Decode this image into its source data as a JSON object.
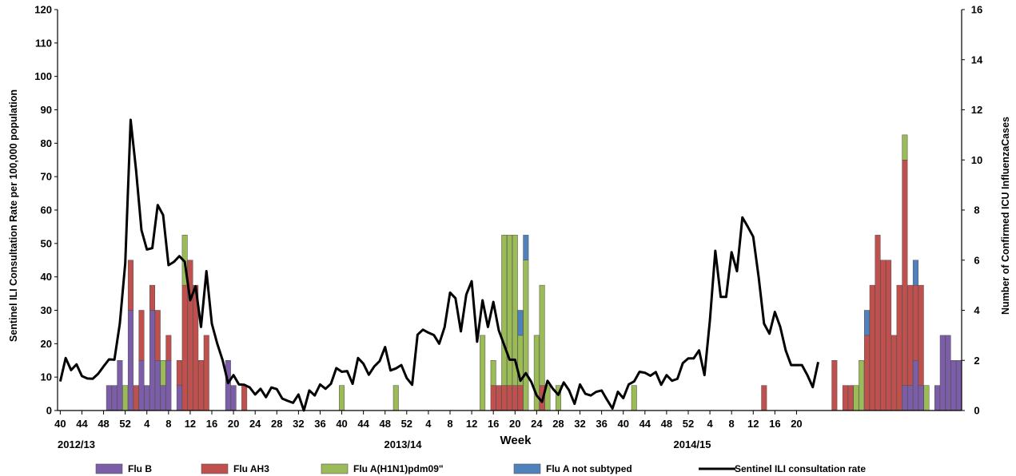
{
  "chart_data": {
    "type": "bar",
    "title": "",
    "xlabel": "Week",
    "ylabel": "Sentinel ILI Consultation Rate per 100,000  population",
    "y2label": "Number of Confirmed ICU InfluenzaCases",
    "ylim": [
      0,
      120
    ],
    "y2lim": [
      0,
      16
    ],
    "y_ticks": [
      0,
      10,
      20,
      30,
      40,
      50,
      60,
      70,
      80,
      90,
      100,
      110,
      120
    ],
    "y2_ticks": [
      0,
      2,
      4,
      6,
      8,
      10,
      12,
      14,
      16
    ],
    "grid": false,
    "legend_position": "bottom",
    "x_tick_labels": [
      "40",
      "44",
      "48",
      "52",
      "4",
      "8",
      "12",
      "16",
      "20",
      "24",
      "28",
      "32",
      "36",
      "40",
      "44",
      "48",
      "52",
      "4",
      "8",
      "12",
      "16",
      "20",
      "24",
      "28",
      "32",
      "36",
      "40",
      "44",
      "48",
      "52",
      "4",
      "8",
      "12",
      "16",
      "20"
    ],
    "seasons": [
      "2012/13",
      "2013/14",
      "2014/15"
    ],
    "series": [
      {
        "name": "Flu B",
        "color": "#7b5ea7",
        "axis": "right",
        "values": [
          0,
          0,
          0,
          0,
          0,
          0,
          0,
          0,
          0,
          1,
          1,
          2,
          0,
          4,
          0,
          2,
          1,
          4,
          2,
          1,
          2,
          0,
          1,
          0,
          0,
          0,
          0,
          0,
          0,
          0,
          0,
          2,
          1,
          0,
          0,
          0,
          0,
          0,
          0,
          0,
          0,
          0,
          0,
          0,
          0,
          0,
          0,
          0,
          0,
          0,
          0,
          0,
          0,
          0,
          0,
          0,
          0,
          0,
          0,
          0,
          0,
          0,
          0,
          0,
          0,
          0,
          0,
          0,
          0,
          0,
          0,
          0,
          0,
          0,
          0,
          0,
          0,
          0,
          0,
          0,
          0,
          0,
          0,
          0,
          0,
          0,
          0,
          0,
          0,
          0,
          0,
          0,
          0,
          0,
          0,
          0,
          0,
          0,
          0,
          0,
          0,
          0,
          0,
          0,
          0,
          0,
          0,
          0,
          0,
          0,
          0,
          0,
          0,
          0,
          0,
          0,
          0,
          0,
          0,
          0,
          0,
          0,
          0,
          0,
          0,
          0,
          0,
          0,
          0,
          0,
          0,
          0,
          0,
          0,
          0,
          0,
          0,
          0,
          0,
          0,
          0,
          0,
          0,
          0,
          0,
          0,
          0,
          0,
          0,
          0,
          0,
          0,
          0,
          0,
          0,
          0,
          1,
          1,
          2,
          1,
          0,
          0,
          1,
          3,
          3,
          2,
          2
        ]
      },
      {
        "name": "Flu AH3",
        "color": "#c0504d",
        "axis": "right",
        "values": [
          0,
          0,
          0,
          0,
          0,
          0,
          0,
          0,
          0,
          0,
          0,
          0,
          0,
          2,
          1,
          2,
          0,
          1,
          2,
          0,
          1,
          0,
          1,
          5,
          6,
          5,
          2,
          3,
          0,
          0,
          0,
          0,
          0,
          0,
          1,
          0,
          0,
          0,
          0,
          0,
          0,
          0,
          0,
          0,
          0,
          0,
          0,
          0,
          0,
          0,
          0,
          0,
          0,
          0,
          0,
          0,
          0,
          0,
          0,
          0,
          0,
          0,
          0,
          0,
          0,
          0,
          0,
          0,
          0,
          0,
          0,
          0,
          0,
          0,
          0,
          0,
          0,
          0,
          0,
          0,
          1,
          1,
          1,
          1,
          1,
          1,
          0,
          0,
          0,
          1,
          0,
          0,
          0,
          0,
          0,
          0,
          0,
          0,
          0,
          0,
          0,
          0,
          0,
          0,
          0,
          0,
          0,
          0,
          0,
          0,
          0,
          0,
          0,
          0,
          0,
          0,
          0,
          0,
          0,
          0,
          0,
          0,
          0,
          0,
          0,
          0,
          0,
          0,
          0,
          0,
          1,
          0,
          0,
          0,
          0,
          0,
          0,
          0,
          0,
          0,
          0,
          0,
          0,
          2,
          0,
          1,
          1,
          0,
          0,
          3,
          5,
          7,
          6,
          6,
          3,
          5,
          9,
          4,
          3,
          4,
          0,
          0,
          0,
          0,
          0,
          0,
          0
        ]
      },
      {
        "name": "Flu A(H1N1)pdm09\"",
        "color": "#9bbb59",
        "axis": "right",
        "values": [
          0,
          0,
          0,
          0,
          0,
          0,
          0,
          0,
          0,
          0,
          0,
          0,
          1,
          0,
          0,
          0,
          0,
          0,
          0,
          1,
          0,
          0,
          0,
          2,
          0,
          0,
          0,
          0,
          0,
          0,
          0,
          0,
          0,
          0,
          0,
          0,
          0,
          0,
          0,
          0,
          0,
          0,
          0,
          0,
          0,
          0,
          0,
          0,
          0,
          0,
          0,
          0,
          1,
          0,
          0,
          0,
          0,
          0,
          0,
          0,
          0,
          0,
          1,
          0,
          0,
          0,
          0,
          0,
          0,
          0,
          0,
          0,
          0,
          0,
          0,
          0,
          0,
          0,
          3,
          0,
          1,
          0,
          6,
          6,
          6,
          2,
          6,
          0,
          3,
          4,
          1,
          0,
          1,
          0,
          0,
          0,
          0,
          0,
          0,
          0,
          0,
          0,
          0,
          0,
          0,
          0,
          1,
          0,
          0,
          0,
          0,
          0,
          0,
          0,
          0,
          0,
          0,
          0,
          0,
          0,
          0,
          0,
          0,
          0,
          0,
          0,
          0,
          0,
          0,
          0,
          0,
          0,
          0,
          0,
          0,
          0,
          0,
          0,
          0,
          0,
          0,
          0,
          0,
          0,
          0,
          0,
          0,
          1,
          2,
          0,
          0,
          0,
          0,
          0,
          0,
          0,
          1,
          0,
          0,
          0,
          1,
          0,
          0,
          0,
          0,
          0,
          0
        ]
      },
      {
        "name": "Flu A not subtyped",
        "color": "#4f81bd",
        "axis": "right",
        "values": [
          0,
          0,
          0,
          0,
          0,
          0,
          0,
          0,
          0,
          0,
          0,
          0,
          0,
          0,
          0,
          0,
          0,
          0,
          0,
          0,
          0,
          0,
          0,
          0,
          0,
          0,
          0,
          0,
          0,
          0,
          0,
          0,
          0,
          0,
          0,
          0,
          0,
          0,
          0,
          0,
          0,
          0,
          0,
          0,
          0,
          0,
          0,
          0,
          0,
          0,
          0,
          0,
          0,
          0,
          0,
          0,
          0,
          0,
          0,
          0,
          0,
          0,
          0,
          0,
          0,
          0,
          0,
          0,
          0,
          0,
          0,
          0,
          0,
          0,
          0,
          0,
          0,
          0,
          0,
          0,
          0,
          0,
          0,
          0,
          0,
          1,
          1,
          0,
          0,
          0,
          0,
          0,
          0,
          0,
          0,
          0,
          0,
          0,
          0,
          0,
          0,
          0,
          0,
          0,
          0,
          0,
          0,
          0,
          0,
          0,
          0,
          0,
          0,
          0,
          0,
          0,
          0,
          0,
          0,
          0,
          0,
          0,
          0,
          0,
          0,
          0,
          0,
          0,
          0,
          0,
          0,
          0,
          0,
          0,
          0,
          0,
          0,
          0,
          0,
          0,
          0,
          0,
          0,
          0,
          0,
          0,
          0,
          0,
          0,
          1,
          0,
          0,
          0,
          0,
          0,
          0,
          0,
          0,
          1,
          0,
          0,
          0,
          0,
          0,
          0,
          0,
          0
        ]
      },
      {
        "name": "Sentinel ILI consultation rate",
        "color": "#000000",
        "axis": "left",
        "kind": "line",
        "values": [
          8.7,
          15.7,
          12.1,
          13.8,
          10.3,
          9.6,
          9.5,
          11.0,
          13.2,
          15.3,
          15.2,
          26.0,
          44.0,
          87.0,
          72.0,
          54.0,
          48.2,
          48.6,
          61.5,
          58.5,
          43.5,
          44.5,
          46.2,
          44.5,
          33.0,
          37.2,
          25.0,
          41.7,
          26.0,
          20.0,
          15.0,
          8.2,
          10.6,
          7.8,
          7.7,
          6.9,
          4.8,
          6.5,
          4.0,
          6.9,
          6.4,
          3.6,
          2.9,
          2.3,
          4.8,
          0.0,
          6.0,
          4.5,
          7.8,
          6.5,
          8.0,
          12.7,
          11.6,
          11.8,
          8.0,
          15.7,
          14.0,
          10.7,
          13.2,
          14.8,
          19.0,
          12.0,
          12.6,
          13.6,
          9.7,
          7.7,
          22.7,
          24.2,
          23.3,
          22.6,
          20.0,
          25.0,
          35.3,
          33.6,
          23.7,
          34.7,
          38.7,
          20.6,
          33.0,
          25.0,
          32.5,
          24.0,
          19.6,
          15.2,
          15.2,
          8.9,
          11.2,
          8.6,
          4.5,
          2.6,
          8.9,
          6.5,
          4.7,
          8.4,
          6.0,
          2.0,
          7.8,
          5.0,
          4.5,
          5.6,
          6.0,
          3.2,
          0.6,
          5.6,
          3.7,
          7.8,
          8.7,
          11.6,
          11.3,
          10.4,
          11.5,
          7.7,
          10.6,
          8.9,
          9.5,
          14.2,
          15.6,
          15.6,
          18.0,
          10.6,
          27.0,
          47.8,
          34.0,
          34.0,
          47.4,
          41.7,
          57.8,
          55.0,
          52.0,
          40.0,
          26.0,
          23.0,
          29.5,
          25.0,
          18.0,
          13.6,
          13.6,
          13.6,
          10.6,
          7.0,
          14.5
        ]
      }
    ]
  }
}
